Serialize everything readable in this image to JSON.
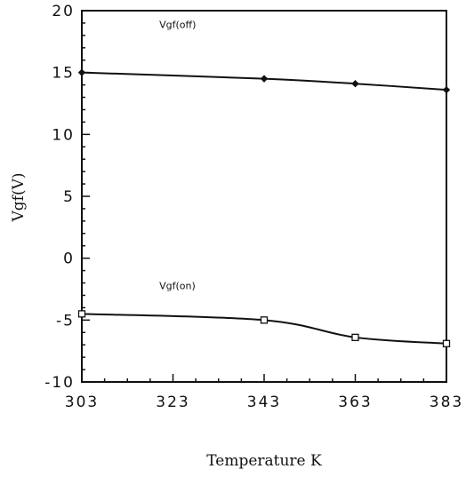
{
  "chart_data": {
    "type": "line",
    "title": "",
    "xlabel": "Temperature K",
    "ylabel": "Vgf(V)",
    "xlim": [
      303,
      383
    ],
    "ylim": [
      -10,
      20
    ],
    "x_ticks": [
      303,
      323,
      343,
      363,
      383
    ],
    "x_tick_labels": [
      "303",
      "323",
      "343",
      "363",
      "383"
    ],
    "y_ticks": [
      -10,
      -5,
      0,
      5,
      10,
      15,
      20
    ],
    "y_tick_labels": [
      "-10",
      "-5",
      "0",
      "5",
      "10",
      "15",
      "20"
    ],
    "grid": false,
    "series": [
      {
        "name": "Vgf(off)",
        "marker": "filled-diamond",
        "x": [
          303,
          343,
          363,
          383
        ],
        "y": [
          15.0,
          14.5,
          14.1,
          13.6
        ]
      },
      {
        "name": "Vgf(on)",
        "marker": "open-square",
        "x": [
          303,
          343,
          363,
          383
        ],
        "y": [
          -4.5,
          -5.0,
          -6.4,
          -6.9
        ]
      }
    ],
    "annotations": [
      {
        "text": "Vgf(off)",
        "x": 320,
        "y": 18.6
      },
      {
        "text": "Vgf(on)",
        "x": 320,
        "y": -2.5
      }
    ]
  }
}
